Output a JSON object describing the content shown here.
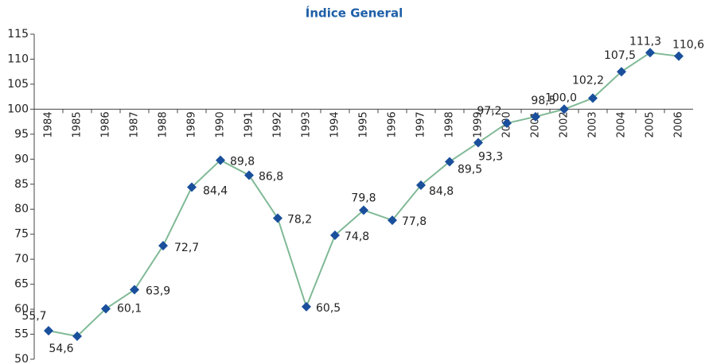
{
  "chart_data": {
    "type": "line",
    "title": "Índice General",
    "categories": [
      "1984",
      "1985",
      "1986",
      "1987",
      "1988",
      "1989",
      "1990",
      "1991",
      "1992",
      "1993",
      "1994",
      "1995",
      "1996",
      "1997",
      "1998",
      "1999",
      "2000",
      "2001",
      "2002",
      "2003",
      "2004",
      "2005",
      "2006"
    ],
    "series": [
      {
        "name": "Índice General",
        "color": "#80b996",
        "marker_color": "#1a4f9c",
        "values": [
          55.7,
          54.6,
          60.1,
          63.9,
          72.7,
          84.4,
          89.8,
          86.8,
          78.2,
          60.5,
          74.8,
          79.8,
          77.8,
          84.8,
          89.5,
          93.3,
          97.2,
          98.5,
          100.0,
          102.2,
          107.5,
          111.3,
          110.6
        ],
        "value_labels": [
          "55,7",
          "54,6",
          "60,1",
          "63,9",
          "72,7",
          "84,4",
          "89,8",
          "86,8",
          "78,2",
          "60,5",
          "74,8",
          "79,8",
          "77,8",
          "84,8",
          "89,5",
          "93,3",
          "97,2",
          "98,5",
          "100,0",
          "102,2",
          "107,5",
          "111,3",
          "110,6"
        ]
      }
    ],
    "ylim": [
      50,
      115
    ],
    "yticks": [
      50,
      55,
      60,
      65,
      70,
      75,
      80,
      85,
      90,
      95,
      100,
      105,
      110,
      115
    ],
    "category_axis_at": 100
  }
}
